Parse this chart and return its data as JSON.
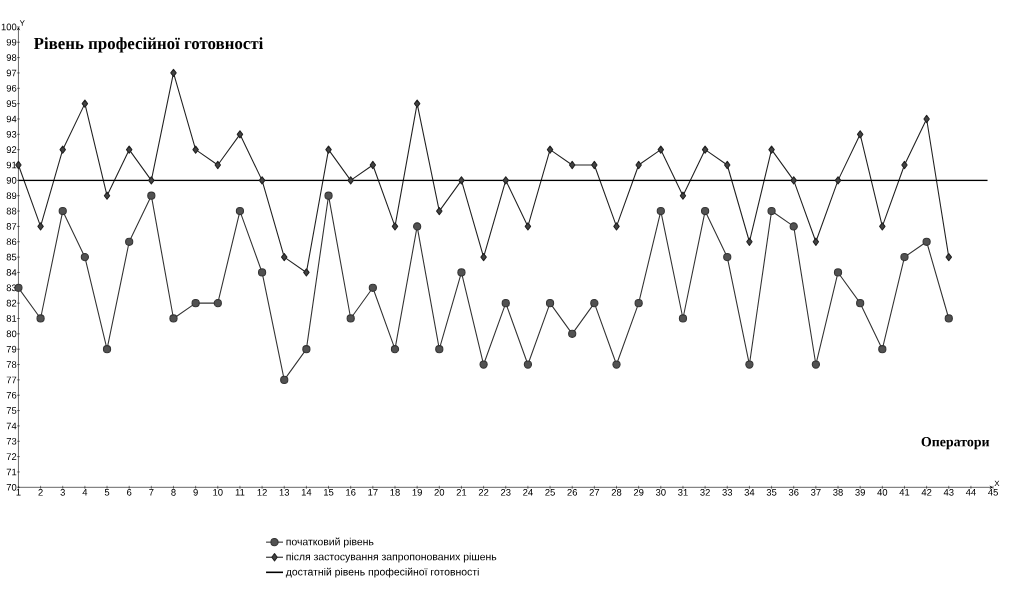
{
  "chart_data": {
    "type": "line",
    "title": "Рівень професійної готовності",
    "xlabel": "X",
    "ylabel": "Y",
    "annotations": [
      "Оператори"
    ],
    "x": [
      1,
      2,
      3,
      4,
      5,
      6,
      7,
      8,
      9,
      10,
      11,
      12,
      13,
      14,
      15,
      16,
      17,
      18,
      19,
      20,
      21,
      22,
      23,
      24,
      25,
      26,
      27,
      28,
      29,
      30,
      31,
      32,
      33,
      34,
      35,
      36,
      37,
      38,
      39,
      40,
      41,
      42,
      43
    ],
    "series": [
      {
        "name": "початковий рівень",
        "color": "#333333",
        "marker": "circle",
        "values": [
          83,
          81,
          88,
          85,
          79,
          86,
          89,
          81,
          82,
          82,
          88,
          84,
          77,
          79,
          89,
          81,
          83,
          79,
          87,
          79,
          84,
          78,
          82,
          78,
          82,
          80,
          82,
          78,
          82,
          88,
          81,
          88,
          85,
          78,
          88,
          87,
          78,
          84,
          82,
          79,
          85,
          86,
          81
        ]
      },
      {
        "name": "після застосування запропонованих рішень",
        "color": "#222222",
        "marker": "diamond",
        "values": [
          91,
          87,
          92,
          95,
          89,
          92,
          90,
          97,
          92,
          91,
          93,
          90,
          85,
          84,
          92,
          90,
          91,
          87,
          95,
          88,
          90,
          85,
          90,
          87,
          92,
          91,
          91,
          87,
          91,
          92,
          89,
          92,
          91,
          86,
          92,
          90,
          86,
          90,
          93,
          87,
          91,
          94,
          85
        ]
      }
    ],
    "ref_lines": [
      {
        "axis": "y",
        "value": 90,
        "label": "достатній рівень професійної готовності",
        "color": "#000000"
      }
    ],
    "xlim": [
      1,
      45
    ],
    "ylim": [
      70,
      100
    ],
    "xticks": [
      1,
      2,
      3,
      4,
      5,
      6,
      7,
      8,
      9,
      10,
      11,
      12,
      13,
      14,
      15,
      16,
      17,
      18,
      19,
      20,
      21,
      22,
      23,
      24,
      25,
      26,
      27,
      28,
      29,
      30,
      31,
      32,
      33,
      34,
      35,
      36,
      37,
      38,
      39,
      40,
      41,
      42,
      43,
      44,
      45
    ],
    "yticks": [
      70,
      71,
      72,
      73,
      74,
      75,
      76,
      77,
      78,
      79,
      80,
      81,
      82,
      83,
      84,
      85,
      86,
      87,
      88,
      89,
      90,
      91,
      92,
      93,
      94,
      95,
      96,
      97,
      98,
      99,
      100
    ],
    "legend": "bottom",
    "line_style": "solid"
  }
}
